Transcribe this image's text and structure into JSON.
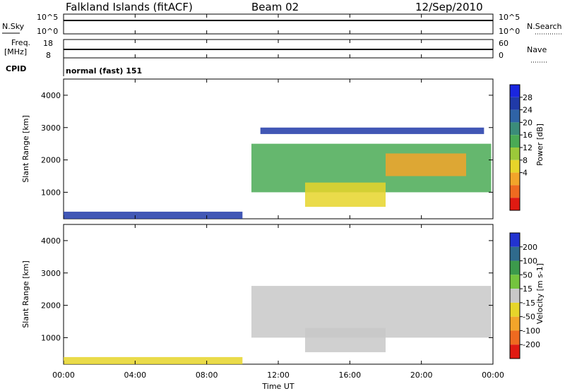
{
  "header": {
    "station": "Falkland Islands (fitACF)",
    "beam": "Beam 02",
    "date": "12/Sep/2010"
  },
  "strips": {
    "nsky_label": "N.Sky",
    "nsky_ticks": [
      "10^5",
      "10^0"
    ],
    "nsearch_label": "N.Search",
    "freq_label_1": "Freq.",
    "freq_label_2": "[MHz]",
    "freq_ticks": [
      "18",
      "8"
    ],
    "nave_label": "Nave",
    "nave_ticks": [
      "60",
      "0"
    ],
    "cpid_label": "CPID",
    "cpid_value": "normal (fast) 151"
  },
  "chart_data": [
    {
      "type": "heatmap",
      "name": "power",
      "ylabel": "Slant Range [km]",
      "yticks": [
        "4000",
        "3000",
        "2000",
        "1000"
      ],
      "ylim": [
        180,
        4500
      ],
      "colorbar_label": "Power [dB]",
      "colorbar_ticks": [
        "28",
        "24",
        "20",
        "16",
        "12",
        "8",
        "4"
      ],
      "colors": [
        "#1a26e0",
        "#203aa8",
        "#2f63a6",
        "#3b8c7a",
        "#4aaa55",
        "#9cc93a",
        "#e6d52a",
        "#f2a52a",
        "#ef6a20",
        "#e01a12"
      ],
      "regions": [
        {
          "x0": 10.5,
          "x1": 23.9,
          "y0": 1000,
          "y1": 2500,
          "level": 4
        },
        {
          "x0": 13.5,
          "x1": 18.0,
          "y0": 550,
          "y1": 1300,
          "level": 6
        },
        {
          "x0": 18.0,
          "x1": 22.5,
          "y0": 1500,
          "y1": 2200,
          "level": 7
        },
        {
          "x0": 11.0,
          "x1": 23.5,
          "y0": 2800,
          "y1": 3000,
          "level": 1
        },
        {
          "x0": 0.0,
          "x1": 10.0,
          "y0": 180,
          "y1": 400,
          "level": 1
        }
      ]
    },
    {
      "type": "heatmap",
      "name": "velocity",
      "ylabel": "Slant Range [km]",
      "yticks": [
        "4000",
        "3000",
        "2000",
        "1000"
      ],
      "ylim": [
        180,
        4500
      ],
      "colorbar_label": "Velocity [m s-1]",
      "colorbar_ticks": [
        "200",
        "100",
        "50",
        "15",
        "-15",
        "-50",
        "-100",
        "-200"
      ],
      "colors": [
        "#2233d0",
        "#2f6a8c",
        "#3c9a4c",
        "#74c43e",
        "#c8c8c8",
        "#e6d52a",
        "#f2a52a",
        "#ef6a20",
        "#e01a12"
      ],
      "regions": [
        {
          "x0": 10.5,
          "x1": 23.9,
          "y0": 1000,
          "y1": 2600,
          "level": 4
        },
        {
          "x0": 13.5,
          "x1": 18.0,
          "y0": 550,
          "y1": 1300,
          "level": 4
        },
        {
          "x0": 0.0,
          "x1": 10.0,
          "y0": 180,
          "y1": 400,
          "level": 5
        }
      ]
    }
  ],
  "xaxis": {
    "label": "Time UT",
    "ticks": [
      "00:00",
      "04:00",
      "08:00",
      "12:00",
      "16:00",
      "20:00",
      "00:00"
    ]
  }
}
